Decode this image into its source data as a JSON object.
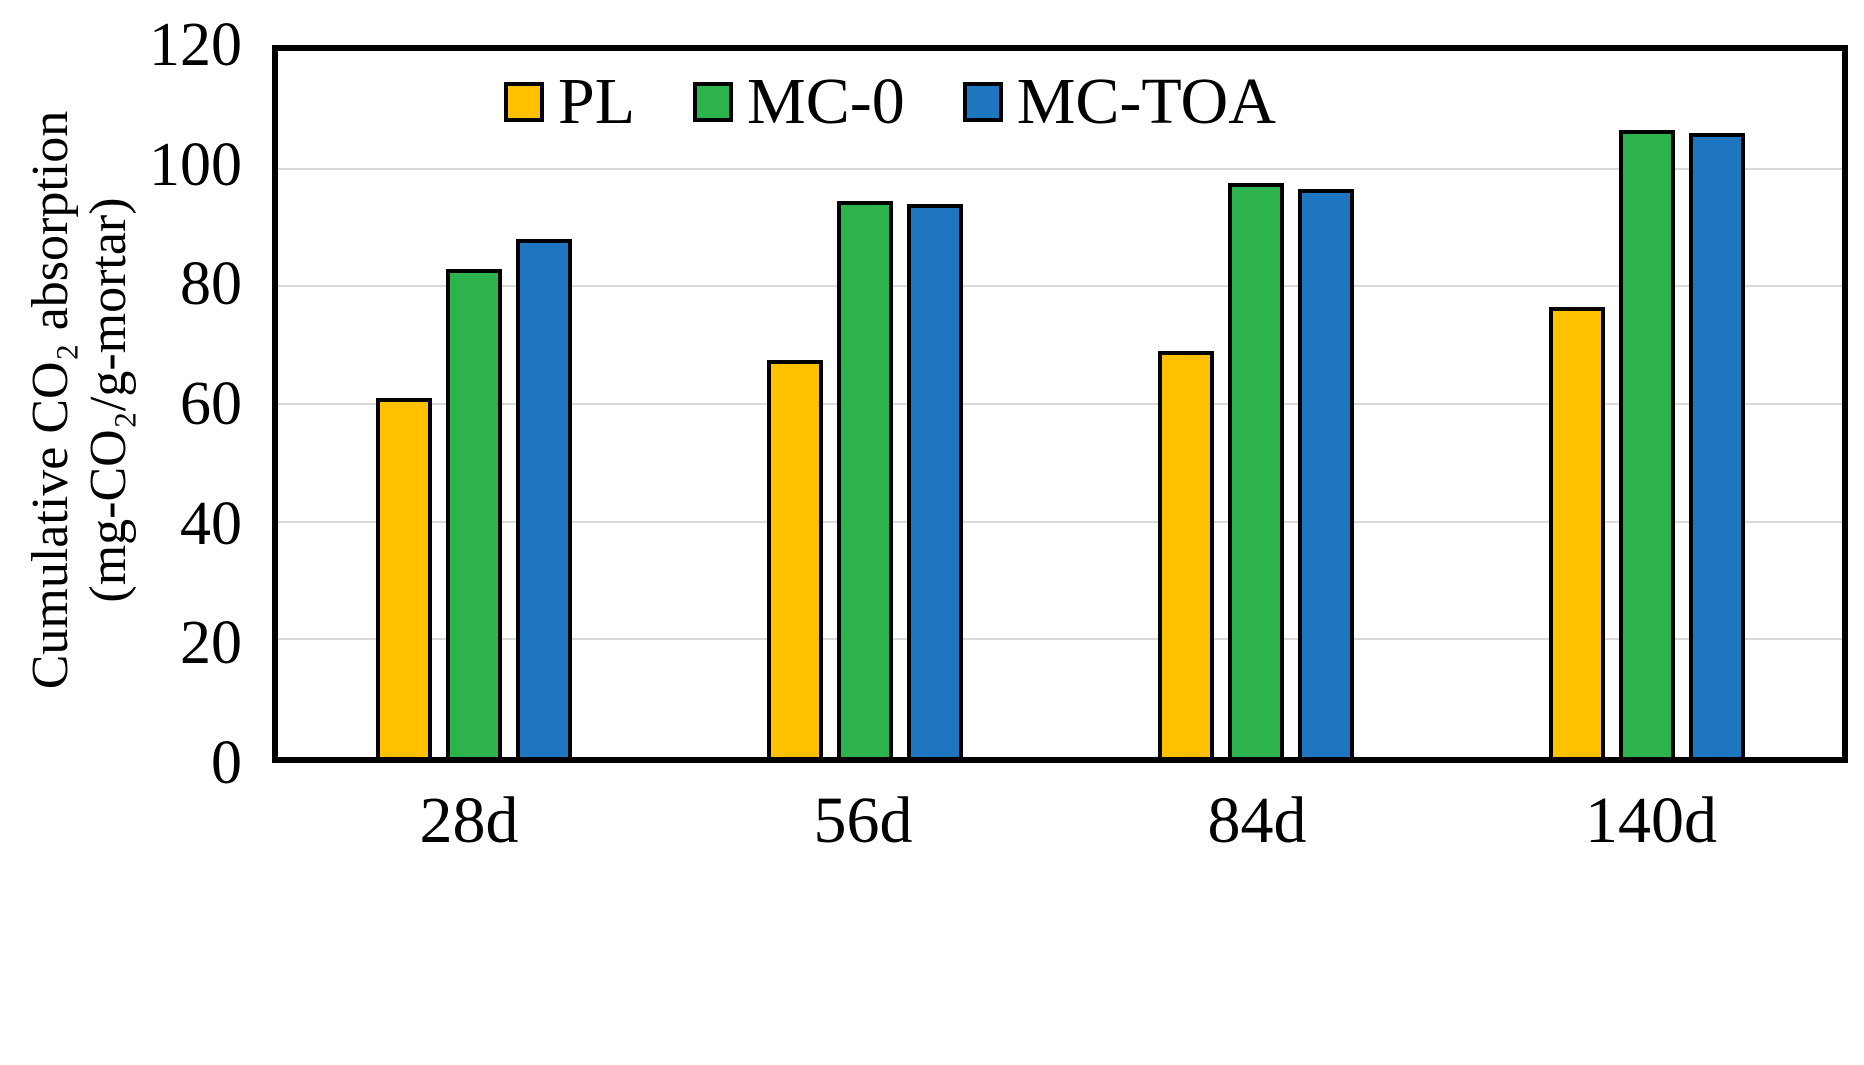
{
  "chart_data": {
    "type": "bar",
    "title": "",
    "ylabel_line1": "Cumulative CO₂ absorption",
    "ylabel_line2": "(mg-CO₂/g-mortar)",
    "xlabel": "",
    "categories": [
      "28d",
      "56d",
      "84d",
      "140d"
    ],
    "series": [
      {
        "name": "PL",
        "color": "#FFC000",
        "values": [
          61,
          67.5,
          69,
          76.5
        ]
      },
      {
        "name": "MC-0",
        "color": "#2CB34C",
        "values": [
          83,
          94.5,
          97.5,
          106.5
        ]
      },
      {
        "name": "MC-TOA",
        "color": "#1E76C0",
        "values": [
          88,
          94,
          96.5,
          106
        ]
      }
    ],
    "ylim": [
      0,
      120
    ],
    "yticks": [
      0,
      20,
      40,
      60,
      80,
      100,
      120
    ],
    "grid": "horizontal",
    "gridline_color": "#d9d9d9",
    "legend_position": "top-inside",
    "bar_border_color": "#000000"
  }
}
